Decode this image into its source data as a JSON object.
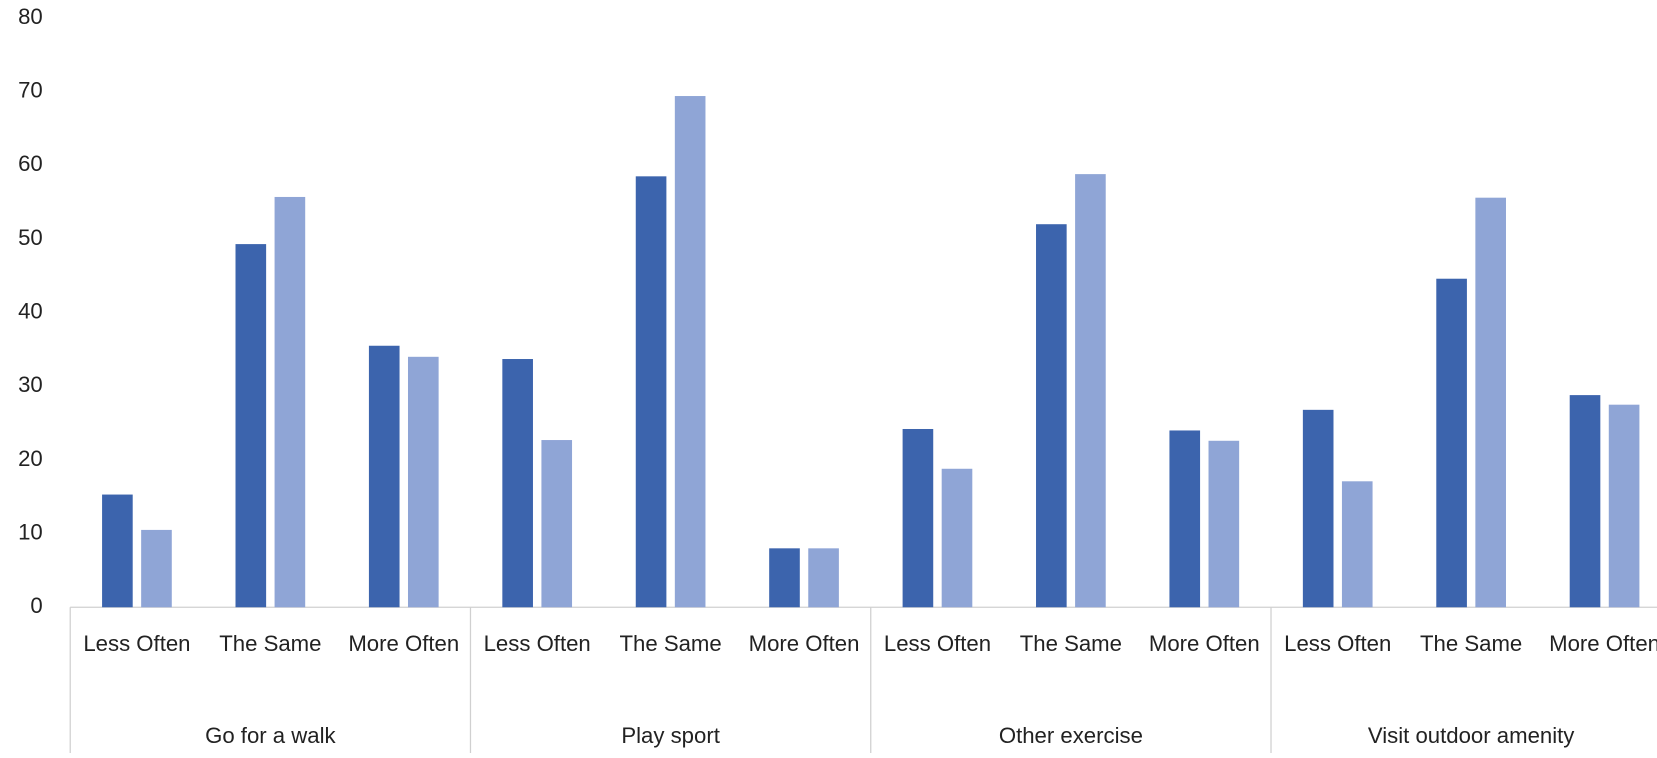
{
  "chart_data": {
    "type": "bar",
    "groups": [
      "Go for a walk",
      "Play sport",
      "Other exercise",
      "Visit outdoor amenity"
    ],
    "categories": [
      "Less Often",
      "The Same",
      "More Often",
      "Less Often",
      "The Same",
      "More Often",
      "Less Often",
      "The Same",
      "More Often",
      "Less Often",
      "The Same",
      "More Often"
    ],
    "series": [
      {
        "color": "#3c64ad",
        "values": [
          15.3,
          49.3,
          35.5,
          33.7,
          58.5,
          8,
          24.2,
          52,
          24,
          26.8,
          44.6,
          28.8
        ]
      },
      {
        "color": "#8fa5d6",
        "values": [
          10.5,
          55.7,
          34,
          22.7,
          69.4,
          8,
          18.8,
          58.8,
          22.6,
          17.1,
          55.6,
          27.5
        ]
      }
    ],
    "ylim": [
      0,
      80
    ],
    "yticks": [
      0,
      10,
      20,
      30,
      40,
      50,
      60,
      70,
      80
    ],
    "grid": false
  }
}
